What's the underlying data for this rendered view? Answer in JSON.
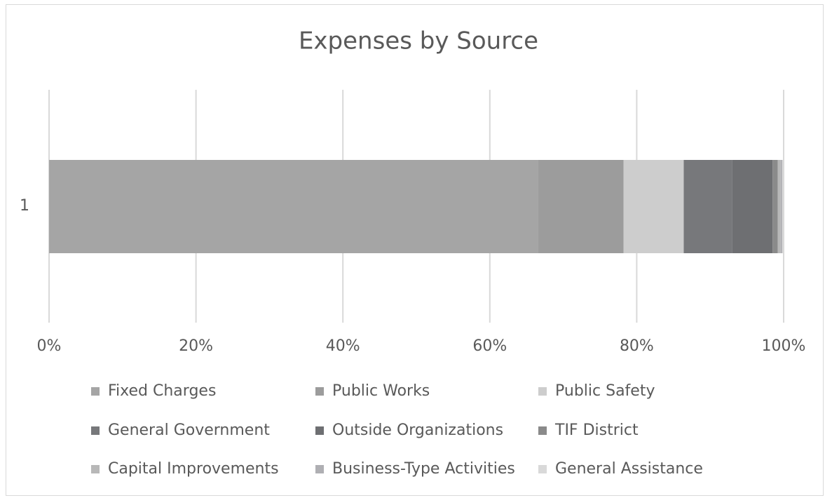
{
  "chart_data": {
    "type": "stacked_barh",
    "title": "Expenses by Source",
    "categories": [
      "1"
    ],
    "series": [
      {
        "name": "Fixed Charges",
        "color": "#a5a5a5",
        "values": [
          66.6
        ]
      },
      {
        "name": "Public Works",
        "color": "#9c9c9c",
        "values": [
          11.6
        ]
      },
      {
        "name": "Public Safety",
        "color": "#cdcdcd",
        "values": [
          8.2
        ]
      },
      {
        "name": "General Government",
        "color": "#77787b",
        "values": [
          6.6
        ]
      },
      {
        "name": "Outside Organizations",
        "color": "#6e6f72",
        "values": [
          5.5
        ]
      },
      {
        "name": "TIF District",
        "color": "#8a8a8a",
        "values": [
          0.7
        ]
      },
      {
        "name": "Capital Improvements",
        "color": "#b8b8b8",
        "values": [
          0.4
        ]
      },
      {
        "name": "Business-Type Activities",
        "color": "#afafb3",
        "values": [
          0.2
        ]
      },
      {
        "name": "General Assistance",
        "color": "#d9d9d9",
        "values": [
          0.2
        ]
      }
    ],
    "xlim": [
      0,
      100
    ],
    "xticks": [
      {
        "value": 0,
        "label": "0%"
      },
      {
        "value": 20,
        "label": "20%"
      },
      {
        "value": 40,
        "label": "40%"
      },
      {
        "value": 60,
        "label": "60%"
      },
      {
        "value": 80,
        "label": "80%"
      },
      {
        "value": 100,
        "label": "100%"
      }
    ],
    "grid": true,
    "legend": "bottom"
  }
}
